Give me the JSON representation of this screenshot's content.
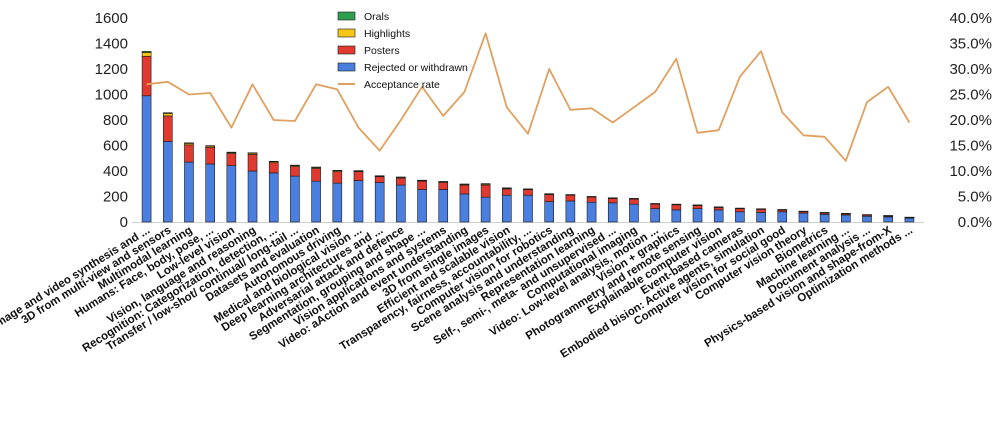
{
  "chart_data": {
    "type": "bar",
    "stacked": true,
    "categories": [
      "Image and video synthesis and ...",
      "3D from multi-view and sensors",
      "Multimodal learning",
      "Humans: Face, body, pose, ...",
      "Low-level vision",
      "Vision, language and reasoning",
      "Recognition: Categorization, detection, ...",
      "Transfer / low-shot/ continual/ long-tail ...",
      "Datasets and evaluation",
      "Autonomous driving",
      "Medical and biological vision ...",
      "Deep learning architectures and ...",
      "Adversarial attack and defence",
      "Segmentation, grouping and shape ...",
      "Vision applications and systems",
      "Video: aAction and event understanding",
      "3D from single images",
      "Efficient and scalable vision",
      "Transparency, fairness, accountability, ...",
      "Computer vision for robotics",
      "Scene analysis and understanding",
      "Representation learning",
      "Self-, semi-, meta- and unsupervised ...",
      "Computational imaging",
      "Video: Low-level analysis, motion ...",
      "Vision + graphics",
      "Photogrammetry and remote sensing",
      "Explainable computer vision",
      "Event-based cameras",
      "Embodied bision: Active agents, simulation",
      "Computer vision for social good",
      "Computer vision theory",
      "Biometrics",
      "Machine learning ...",
      "Document analysis ...",
      "Physics-based vision and shape-from-X",
      "Optimization methods ..."
    ],
    "series": [
      {
        "name": "Rejected or withdrawn",
        "color": "#4a7fe0",
        "values": [
          990,
          632,
          470,
          455,
          442,
          400,
          385,
          360,
          320,
          305,
          325,
          310,
          290,
          255,
          255,
          220,
          195,
          210,
          210,
          160,
          165,
          155,
          150,
          140,
          105,
          95,
          105,
          95,
          80,
          75,
          80,
          70,
          60,
          55,
          45,
          40,
          30
        ]
      },
      {
        "name": "Posters",
        "color": "#e03a30",
        "values": [
          310,
          200,
          135,
          130,
          95,
          130,
          80,
          75,
          100,
          90,
          70,
          45,
          55,
          65,
          55,
          70,
          95,
          50,
          45,
          55,
          45,
          40,
          35,
          40,
          35,
          40,
          25,
          20,
          25,
          25,
          15,
          12,
          12,
          10,
          10,
          8,
          5
        ]
      },
      {
        "name": "Highlights",
        "color": "#f5c518",
        "values": [
          30,
          20,
          12,
          10,
          8,
          10,
          8,
          8,
          8,
          8,
          6,
          6,
          6,
          6,
          6,
          6,
          8,
          6,
          4,
          5,
          4,
          4,
          4,
          4,
          4,
          4,
          3,
          3,
          3,
          3,
          2,
          2,
          2,
          2,
          2,
          2,
          2
        ]
      },
      {
        "name": "Orals",
        "color": "#2e9e4f",
        "values": [
          8,
          5,
          4,
          4,
          3,
          3,
          3,
          3,
          3,
          2,
          2,
          2,
          2,
          2,
          2,
          2,
          3,
          2,
          1,
          2,
          1,
          1,
          1,
          1,
          1,
          1,
          1,
          1,
          1,
          1,
          1,
          1,
          1,
          1,
          1,
          1,
          1
        ]
      }
    ],
    "line": {
      "name": "Acceptance rate",
      "color": "#e0a060",
      "values": [
        27.0,
        27.5,
        25.0,
        25.3,
        18.5,
        27.0,
        20.0,
        19.8,
        27.0,
        26.0,
        18.5,
        14.0,
        20.0,
        26.5,
        20.8,
        25.5,
        37.0,
        22.5,
        17.3,
        30.0,
        22.0,
        22.3,
        19.5,
        22.5,
        25.5,
        32.0,
        17.5,
        18.0,
        28.5,
        33.5,
        21.5,
        17.0,
        16.7,
        12.0,
        23.5,
        26.5,
        19.5
      ]
    },
    "ylim": [
      0,
      1600
    ],
    "yticks": [
      "0",
      "200",
      "400",
      "600",
      "800",
      "1000",
      "1200",
      "1400",
      "1600"
    ],
    "y2lim": [
      0,
      40
    ],
    "y2ticks": [
      "0.0%",
      "5.0%",
      "10.0%",
      "15.0%",
      "20.0%",
      "25.0%",
      "30.0%",
      "35.0%",
      "40.0%"
    ],
    "legend": {
      "position": "top-center",
      "entries": [
        {
          "label": "Orals",
          "color": "#2e9e4f",
          "kind": "box"
        },
        {
          "label": "Highlights",
          "color": "#f5c518",
          "kind": "box"
        },
        {
          "label": "Posters",
          "color": "#e03a30",
          "kind": "box"
        },
        {
          "label": "Rejected or withdrawn",
          "color": "#4a7fe0",
          "kind": "box"
        },
        {
          "label": "Acceptance rate",
          "color": "#e0a060",
          "kind": "line"
        }
      ]
    },
    "title": "",
    "xlabel": "",
    "ylabel": ""
  }
}
